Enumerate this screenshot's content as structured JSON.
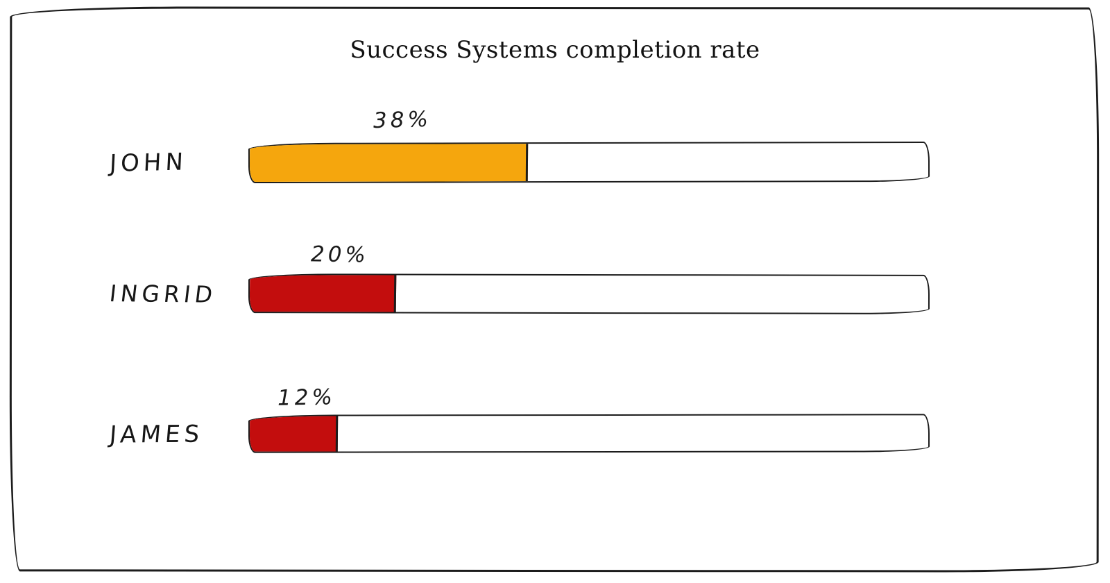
{
  "chart_data": {
    "type": "bar",
    "orientation": "horizontal",
    "title": "Success Systems completion rate",
    "categories": [
      "JOHN",
      "INGRID",
      "JAMES"
    ],
    "values": [
      38,
      20,
      12
    ],
    "value_labels": [
      "38%",
      "20%",
      "12%"
    ],
    "bar_colors": [
      "#F5A60D",
      "#C30D0D",
      "#C30D0D"
    ],
    "track_color": "#FFFFFF",
    "outline_color": "#1C1C1C",
    "xlim": [
      0,
      100
    ],
    "xlabel": "",
    "ylabel": "",
    "grid": false,
    "legend": "none",
    "style": "hand-drawn sketch"
  }
}
